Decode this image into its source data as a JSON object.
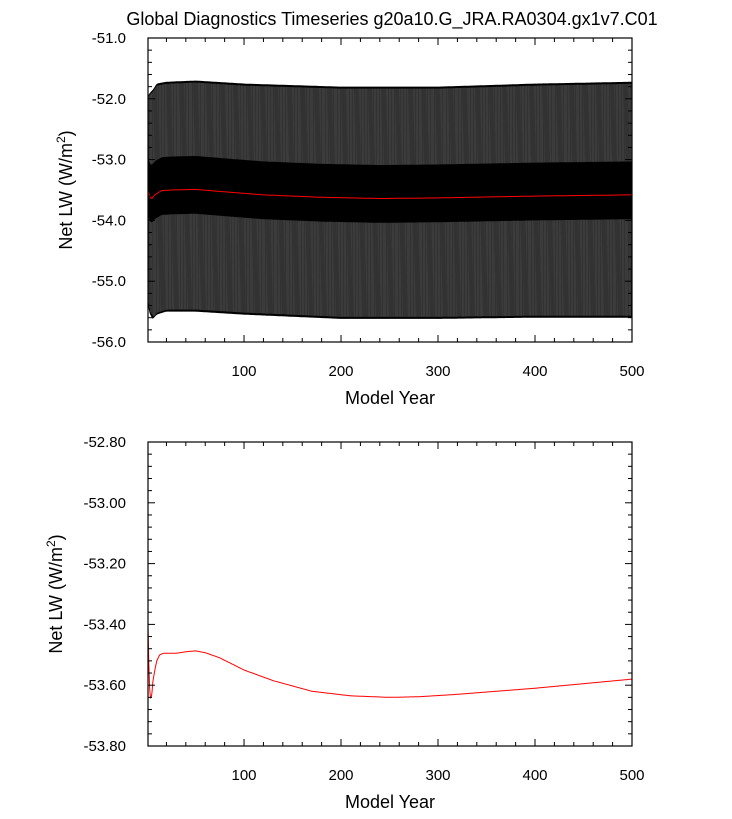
{
  "title": "Global Diagnostics Timeseries g20a10.G_JRA.RA0304.gx1v7.C01",
  "colors": {
    "background": "#ffffff",
    "axis": "#000000",
    "mean_line": "#ff0000",
    "envelope_fill": "#000000",
    "envelope_stripes": "#555555"
  },
  "chart_data": [
    {
      "type": "line",
      "panel": "top",
      "xlabel": "Model Year",
      "ylabel": "Net LW (W/m",
      "ylabel_sup": "2",
      "ylabel_close": ")",
      "xlim": [
        1,
        500
      ],
      "ylim": [
        -56.0,
        -51.0
      ],
      "xticks": [
        100,
        200,
        300,
        400,
        500
      ],
      "xtick_labels": [
        "100",
        "200",
        "300",
        "400",
        "500"
      ],
      "yticks": [
        -56.0,
        -55.0,
        -54.0,
        -53.0,
        -52.0,
        -51.0
      ],
      "ytick_labels": [
        "-56.0",
        "-55.0",
        "-54.0",
        "-53.0",
        "-52.0",
        "-51.0"
      ],
      "series": [
        {
          "name": "monthly envelope upper",
          "x": [
            1,
            3,
            6,
            10,
            20,
            50,
            100,
            200,
            300,
            400,
            500
          ],
          "values": [
            -51.95,
            -51.9,
            -51.85,
            -51.75,
            -51.72,
            -51.7,
            -51.75,
            -51.8,
            -51.8,
            -51.75,
            -51.72
          ]
        },
        {
          "name": "monthly envelope lower",
          "x": [
            1,
            3,
            6,
            10,
            20,
            50,
            100,
            200,
            300,
            400,
            500
          ],
          "values": [
            -55.4,
            -55.55,
            -55.62,
            -55.55,
            -55.5,
            -55.5,
            -55.55,
            -55.62,
            -55.62,
            -55.6,
            -55.6
          ]
        },
        {
          "name": "annual mean",
          "x": [
            1,
            3,
            5,
            8,
            15,
            25,
            50,
            80,
            120,
            180,
            240,
            300,
            400,
            500
          ],
          "values": [
            -53.52,
            -53.62,
            -53.64,
            -53.58,
            -53.51,
            -53.5,
            -53.49,
            -53.53,
            -53.58,
            -53.62,
            -53.64,
            -53.63,
            -53.6,
            -53.58
          ]
        }
      ]
    },
    {
      "type": "line",
      "panel": "bottom",
      "xlabel": "Model Year",
      "ylabel": "Net LW (W/m",
      "ylabel_sup": "2",
      "ylabel_close": ")",
      "xlim": [
        1,
        500
      ],
      "ylim": [
        -53.8,
        -52.8
      ],
      "xticks": [
        100,
        200,
        300,
        400,
        500
      ],
      "xtick_labels": [
        "100",
        "200",
        "300",
        "400",
        "500"
      ],
      "yticks": [
        -53.8,
        -53.6,
        -53.4,
        -53.2,
        -53.0,
        -52.8
      ],
      "ytick_labels": [
        "-53.80",
        "-53.60",
        "-53.40",
        "-53.20",
        "-53.00",
        "-52.80"
      ],
      "series": [
        {
          "name": "annual mean",
          "x": [
            1,
            1.6,
            2.4,
            3.2,
            4,
            5,
            6,
            8,
            10,
            13,
            17,
            22,
            30,
            40,
            50,
            60,
            75,
            100,
            130,
            170,
            210,
            250,
            280,
            320,
            360,
            400,
            450,
            500
          ],
          "values": [
            -53.4,
            -53.5,
            -53.59,
            -53.64,
            -53.645,
            -53.63,
            -53.59,
            -53.55,
            -53.52,
            -53.5,
            -53.495,
            -53.495,
            -53.495,
            -53.49,
            -53.487,
            -53.493,
            -53.51,
            -53.55,
            -53.585,
            -53.62,
            -53.635,
            -53.64,
            -53.638,
            -53.63,
            -53.62,
            -53.61,
            -53.595,
            -53.58
          ]
        }
      ]
    }
  ]
}
